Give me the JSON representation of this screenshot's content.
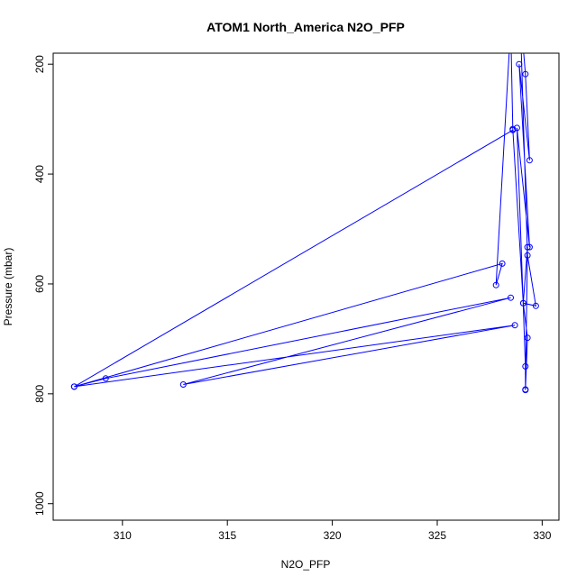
{
  "chart_data": {
    "type": "line",
    "title": "ATOM1 North_America N2O_PFP",
    "xlabel": "N2O_PFP",
    "ylabel": "Pressure (mbar)",
    "xlim": [
      306.7,
      330.8
    ],
    "ylim": [
      1030,
      180
    ],
    "y_reversed": true,
    "x_ticks": [
      310,
      315,
      320,
      325,
      330
    ],
    "y_ticks": [
      200,
      400,
      600,
      800,
      1000
    ],
    "grid": false,
    "legend": "none",
    "color": "#0000ff",
    "series": [
      {
        "x": [
          328.6,
          307.7,
          309.2,
          328.5,
          312.9,
          328.7,
          307.7,
          328.1,
          327.8,
          328.5,
          328.6,
          329.1,
          329.7,
          329.3,
          329.0,
          329.1,
          329.2,
          329.4,
          328.9,
          329.4,
          328.8,
          329.2,
          329.2,
          329.3,
          329.1,
          329.3,
          329.2
        ],
        "y": [
          320,
          787,
          772,
          625,
          783,
          675,
          787,
          563,
          602,
          130,
          318,
          635,
          640,
          548,
          170,
          170,
          218,
          375,
          200,
          533,
          316,
          750,
          792,
          533,
          635,
          698,
          793
        ]
      }
    ]
  }
}
